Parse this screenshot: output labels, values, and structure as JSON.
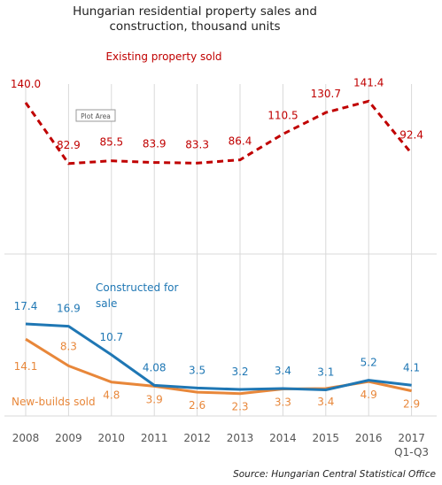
{
  "chart_data": {
    "type": "line",
    "title_lines": [
      "Hungarian residential property sales and",
      "construction, thousand units"
    ],
    "categories": [
      "2008",
      "2009",
      "2010",
      "2011",
      "2012",
      "2013",
      "2014",
      "2015",
      "2016",
      "2017"
    ],
    "category_sublabels": [
      "",
      "",
      "",
      "",
      "",
      "",
      "",
      "",
      "",
      "Q1-Q3"
    ],
    "grid": "vertical lines at each year",
    "panels": [
      {
        "name": "top",
        "ylim": [
          50,
          150
        ],
        "series": [
          {
            "name": "Existing property sold",
            "style": "dashed",
            "color": "#c00000",
            "values": [
              140.0,
              82.9,
              85.5,
              83.9,
              83.3,
              86.4,
              110.5,
              130.7,
              141.4,
              92.4
            ],
            "labels": [
              "140.0",
              "82.9",
              "85.5",
              "83.9",
              "83.3",
              "86.4",
              "110.5",
              "130.7",
              "141.4",
              "92.4"
            ]
          }
        ],
        "annotation": "Plot Area"
      },
      {
        "name": "bottom",
        "ylim": [
          0,
          25
        ],
        "series": [
          {
            "name": "Constructed for sale",
            "style": "solid",
            "color": "#1f77b4",
            "values": [
              17.4,
              16.9,
              10.7,
              4.08,
              3.5,
              3.2,
              3.4,
              3.1,
              5.2,
              4.1
            ],
            "labels": [
              "17.4",
              "16.9",
              "10.7",
              "4.08",
              "3.5",
              "3.2",
              "3.4",
              "3.1",
              "5.2",
              "4.1"
            ]
          },
          {
            "name": "New-builds sold",
            "style": "solid",
            "color": "#e8873a",
            "values": [
              14.1,
              8.3,
              4.8,
              3.9,
              2.6,
              2.3,
              3.3,
              3.4,
              4.9,
              2.9
            ],
            "labels": [
              "14.1",
              "8.3",
              "4.8",
              "3.9",
              "2.6",
              "2.3",
              "3.3",
              "3.4",
              "4.9",
              "2.9"
            ]
          }
        ]
      }
    ],
    "source": "Source: Hungarian Central Statistical Office"
  }
}
